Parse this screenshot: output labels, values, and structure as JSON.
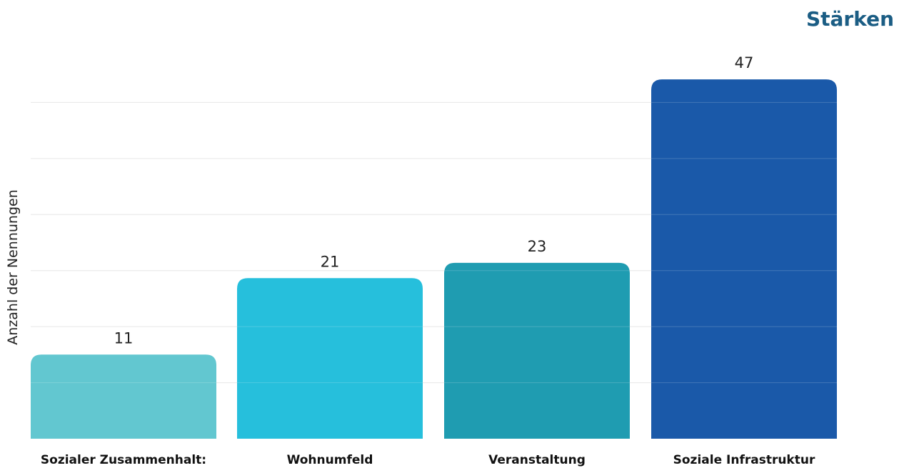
{
  "chart_data": {
    "type": "bar",
    "title": "Stärken",
    "ylabel": "Anzahl der Nennungen",
    "xlabel": "",
    "categories": [
      "Sozialer Zusammenhalt:",
      "Wohnumfeld",
      "Veranstaltung",
      "Soziale Infrastruktur"
    ],
    "values": [
      11,
      21,
      23,
      47
    ],
    "colors": [
      "#62c7d0",
      "#26bfdc",
      "#1f9cb1",
      "#1a59a9"
    ],
    "ylim": [
      0,
      60
    ],
    "grid": true,
    "legend": "none"
  }
}
